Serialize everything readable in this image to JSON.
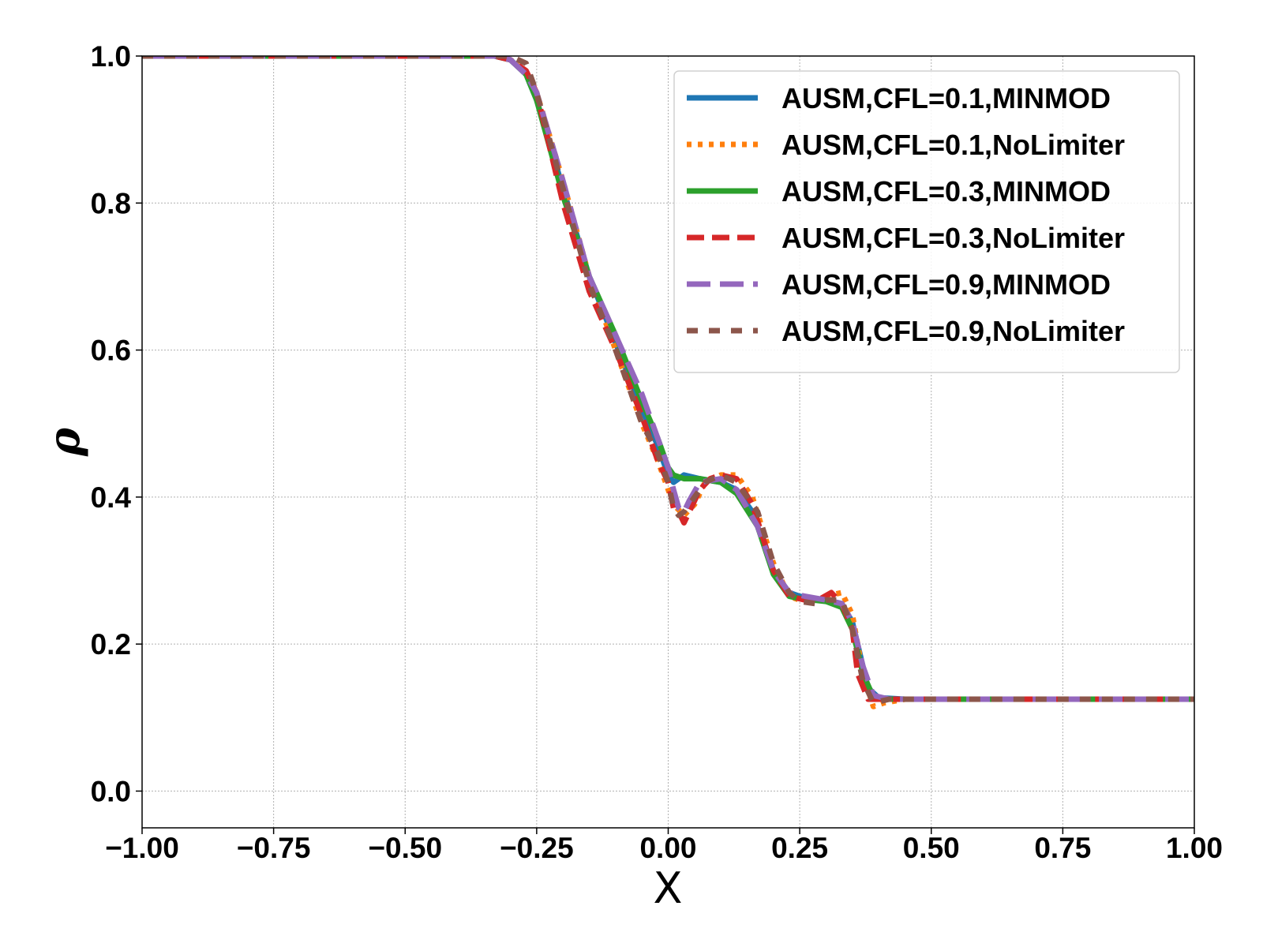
{
  "chart_data": {
    "type": "line",
    "title": "",
    "xlabel": "X",
    "ylabel": "ρ",
    "xlim": [
      -1.0,
      1.0
    ],
    "ylim": [
      -0.05,
      1.0
    ],
    "xticks": [
      -1.0,
      -0.75,
      -0.5,
      -0.25,
      0.0,
      0.25,
      0.5,
      0.75,
      1.0
    ],
    "xtick_labels": [
      "−1.00",
      "−0.75",
      "−0.50",
      "−0.25",
      "0.00",
      "0.25",
      "0.50",
      "0.75",
      "1.00"
    ],
    "yticks": [
      0.0,
      0.2,
      0.4,
      0.6,
      0.8,
      1.0
    ],
    "ytick_labels": [
      "0.0",
      "0.2",
      "0.4",
      "0.6",
      "0.8",
      "1.0"
    ],
    "grid": true,
    "legend_position": "top-right",
    "series": [
      {
        "name": "AUSM,CFL=0.1,MINMOD",
        "color": "#1f77b4",
        "dash": "solid",
        "points": [
          [
            -1.0,
            1.0
          ],
          [
            -0.33,
            1.0
          ],
          [
            -0.3,
            0.995
          ],
          [
            -0.27,
            0.975
          ],
          [
            -0.25,
            0.94
          ],
          [
            -0.2,
            0.82
          ],
          [
            -0.15,
            0.7
          ],
          [
            -0.1,
            0.61
          ],
          [
            -0.05,
            0.52
          ],
          [
            -0.02,
            0.47
          ],
          [
            0.0,
            0.43
          ],
          [
            0.01,
            0.42
          ],
          [
            0.03,
            0.43
          ],
          [
            0.06,
            0.425
          ],
          [
            0.1,
            0.42
          ],
          [
            0.13,
            0.41
          ],
          [
            0.16,
            0.38
          ],
          [
            0.2,
            0.3
          ],
          [
            0.23,
            0.27
          ],
          [
            0.25,
            0.265
          ],
          [
            0.3,
            0.26
          ],
          [
            0.33,
            0.255
          ],
          [
            0.35,
            0.23
          ],
          [
            0.37,
            0.17
          ],
          [
            0.38,
            0.14
          ],
          [
            0.4,
            0.127
          ],
          [
            0.45,
            0.125
          ],
          [
            1.0,
            0.125
          ]
        ]
      },
      {
        "name": "AUSM,CFL=0.1,NoLimiter",
        "color": "#ff7f0e",
        "dash": "dotted",
        "points": [
          [
            -1.0,
            1.0
          ],
          [
            -0.33,
            1.0
          ],
          [
            -0.3,
            0.995
          ],
          [
            -0.27,
            0.978
          ],
          [
            -0.25,
            0.95
          ],
          [
            -0.2,
            0.83
          ],
          [
            -0.15,
            0.7
          ],
          [
            -0.1,
            0.6
          ],
          [
            -0.05,
            0.5
          ],
          [
            -0.02,
            0.45
          ],
          [
            0.0,
            0.41
          ],
          [
            0.01,
            0.39
          ],
          [
            0.03,
            0.375
          ],
          [
            0.05,
            0.39
          ],
          [
            0.07,
            0.42
          ],
          [
            0.1,
            0.43
          ],
          [
            0.13,
            0.43
          ],
          [
            0.16,
            0.4
          ],
          [
            0.2,
            0.31
          ],
          [
            0.23,
            0.265
          ],
          [
            0.25,
            0.26
          ],
          [
            0.28,
            0.26
          ],
          [
            0.3,
            0.265
          ],
          [
            0.33,
            0.27
          ],
          [
            0.35,
            0.24
          ],
          [
            0.37,
            0.16
          ],
          [
            0.39,
            0.115
          ],
          [
            0.41,
            0.12
          ],
          [
            0.45,
            0.125
          ],
          [
            1.0,
            0.125
          ]
        ]
      },
      {
        "name": "AUSM,CFL=0.3,MINMOD",
        "color": "#2ca02c",
        "dash": "solid",
        "points": [
          [
            -1.0,
            1.0
          ],
          [
            -0.33,
            1.0
          ],
          [
            -0.3,
            0.995
          ],
          [
            -0.27,
            0.975
          ],
          [
            -0.25,
            0.94
          ],
          [
            -0.2,
            0.81
          ],
          [
            -0.15,
            0.7
          ],
          [
            -0.1,
            0.62
          ],
          [
            -0.05,
            0.53
          ],
          [
            -0.02,
            0.48
          ],
          [
            0.0,
            0.44
          ],
          [
            0.01,
            0.43
          ],
          [
            0.03,
            0.425
          ],
          [
            0.06,
            0.425
          ],
          [
            0.1,
            0.42
          ],
          [
            0.13,
            0.405
          ],
          [
            0.17,
            0.36
          ],
          [
            0.2,
            0.295
          ],
          [
            0.23,
            0.265
          ],
          [
            0.25,
            0.262
          ],
          [
            0.3,
            0.258
          ],
          [
            0.33,
            0.25
          ],
          [
            0.35,
            0.22
          ],
          [
            0.37,
            0.16
          ],
          [
            0.39,
            0.128
          ],
          [
            0.42,
            0.125
          ],
          [
            1.0,
            0.125
          ]
        ]
      },
      {
        "name": "AUSM,CFL=0.3,NoLimiter",
        "color": "#d62728",
        "dash": "dashed",
        "points": [
          [
            -1.0,
            1.0
          ],
          [
            -0.33,
            1.0
          ],
          [
            -0.3,
            0.995
          ],
          [
            -0.27,
            0.98
          ],
          [
            -0.25,
            0.95
          ],
          [
            -0.2,
            0.8
          ],
          [
            -0.15,
            0.68
          ],
          [
            -0.1,
            0.6
          ],
          [
            -0.05,
            0.51
          ],
          [
            -0.02,
            0.45
          ],
          [
            0.0,
            0.42
          ],
          [
            0.01,
            0.385
          ],
          [
            0.02,
            0.38
          ],
          [
            0.03,
            0.365
          ],
          [
            0.04,
            0.38
          ],
          [
            0.06,
            0.41
          ],
          [
            0.08,
            0.425
          ],
          [
            0.1,
            0.43
          ],
          [
            0.13,
            0.425
          ],
          [
            0.16,
            0.39
          ],
          [
            0.2,
            0.3
          ],
          [
            0.23,
            0.265
          ],
          [
            0.26,
            0.26
          ],
          [
            0.29,
            0.262
          ],
          [
            0.31,
            0.27
          ],
          [
            0.33,
            0.255
          ],
          [
            0.35,
            0.22
          ],
          [
            0.36,
            0.16
          ],
          [
            0.38,
            0.125
          ],
          [
            0.42,
            0.125
          ],
          [
            1.0,
            0.125
          ]
        ]
      },
      {
        "name": "AUSM,CFL=0.9,MINMOD",
        "color": "#9467bd",
        "dash": "longdash",
        "points": [
          [
            -1.0,
            1.0
          ],
          [
            -0.33,
            1.0
          ],
          [
            -0.3,
            0.995
          ],
          [
            -0.27,
            0.975
          ],
          [
            -0.25,
            0.95
          ],
          [
            -0.2,
            0.83
          ],
          [
            -0.15,
            0.7
          ],
          [
            -0.1,
            0.62
          ],
          [
            -0.05,
            0.54
          ],
          [
            -0.02,
            0.48
          ],
          [
            0.0,
            0.44
          ],
          [
            0.01,
            0.41
          ],
          [
            0.02,
            0.385
          ],
          [
            0.03,
            0.38
          ],
          [
            0.04,
            0.395
          ],
          [
            0.06,
            0.42
          ],
          [
            0.1,
            0.425
          ],
          [
            0.13,
            0.41
          ],
          [
            0.17,
            0.36
          ],
          [
            0.2,
            0.3
          ],
          [
            0.23,
            0.27
          ],
          [
            0.26,
            0.265
          ],
          [
            0.3,
            0.26
          ],
          [
            0.33,
            0.255
          ],
          [
            0.35,
            0.23
          ],
          [
            0.37,
            0.17
          ],
          [
            0.39,
            0.13
          ],
          [
            0.42,
            0.125
          ],
          [
            1.0,
            0.125
          ]
        ]
      },
      {
        "name": "AUSM,CFL=0.9,NoLimiter",
        "color": "#8c564b",
        "dash": "shortdash",
        "points": [
          [
            -1.0,
            1.0
          ],
          [
            -0.38,
            1.0
          ],
          [
            -0.33,
            1.0
          ],
          [
            -0.3,
            1.0
          ],
          [
            -0.27,
            0.99
          ],
          [
            -0.25,
            0.95
          ],
          [
            -0.2,
            0.82
          ],
          [
            -0.15,
            0.69
          ],
          [
            -0.1,
            0.6
          ],
          [
            -0.05,
            0.5
          ],
          [
            -0.02,
            0.46
          ],
          [
            0.0,
            0.42
          ],
          [
            0.01,
            0.385
          ],
          [
            0.02,
            0.375
          ],
          [
            0.03,
            0.38
          ],
          [
            0.05,
            0.4
          ],
          [
            0.07,
            0.42
          ],
          [
            0.1,
            0.43
          ],
          [
            0.13,
            0.42
          ],
          [
            0.17,
            0.38
          ],
          [
            0.2,
            0.31
          ],
          [
            0.23,
            0.27
          ],
          [
            0.25,
            0.258
          ],
          [
            0.28,
            0.255
          ],
          [
            0.3,
            0.26
          ],
          [
            0.33,
            0.26
          ],
          [
            0.35,
            0.22
          ],
          [
            0.37,
            0.15
          ],
          [
            0.39,
            0.12
          ],
          [
            0.42,
            0.125
          ],
          [
            1.0,
            0.125
          ]
        ]
      }
    ]
  }
}
